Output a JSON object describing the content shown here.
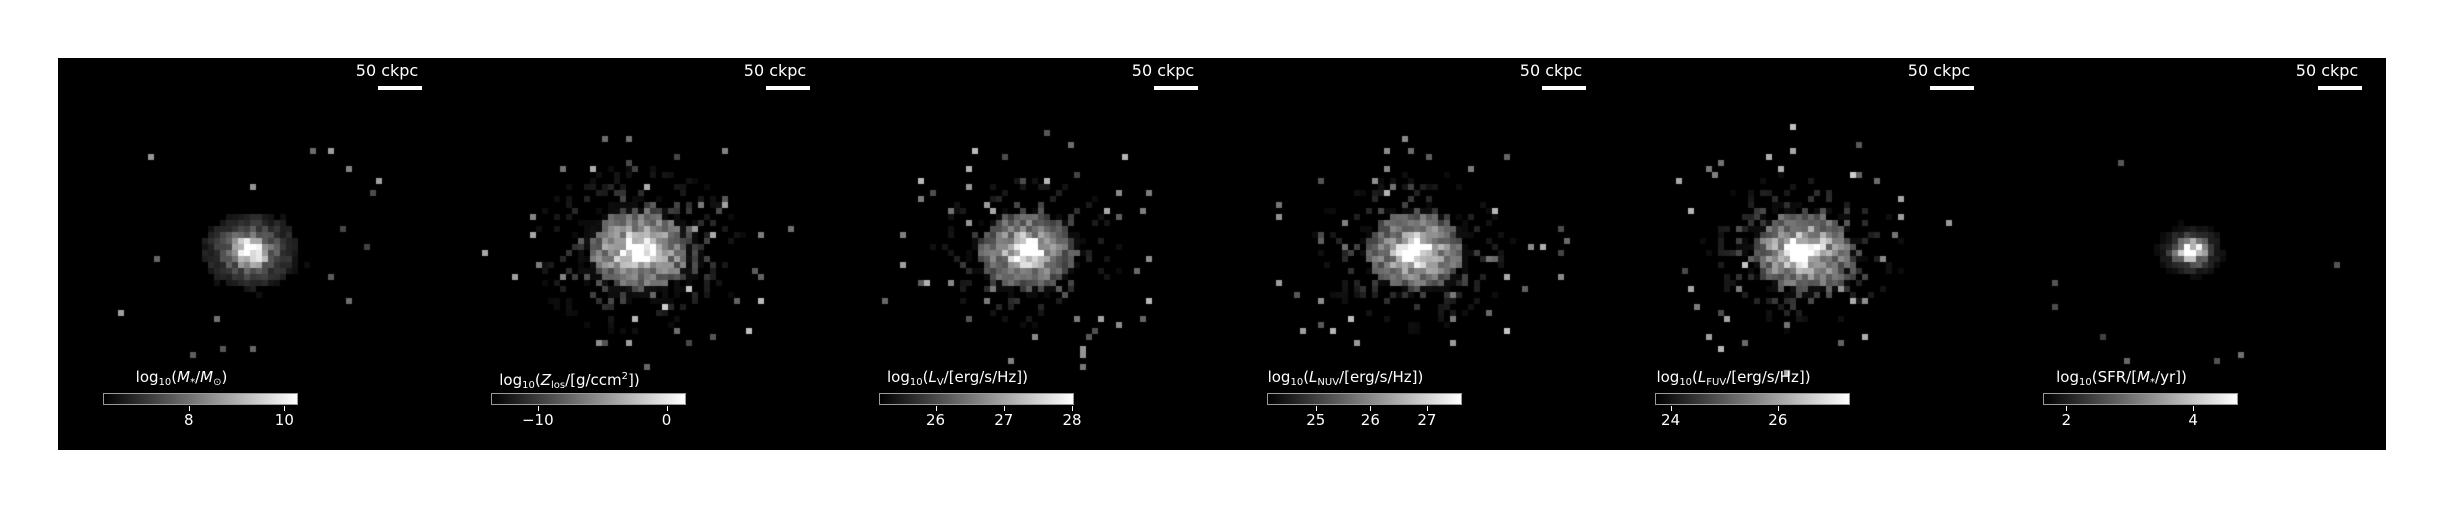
{
  "figure": {
    "background": "#000000",
    "panels": [
      {
        "id": "stellar-mass",
        "scale_label": "50 ckpc",
        "colorbar": {
          "title_prefix": "log",
          "title_sub": "10",
          "title_open": "(",
          "title_main": "M",
          "title_main_sub": "*",
          "title_mid": "/",
          "title_denom": "M",
          "title_denom_sub": "⊙",
          "title_close": ")",
          "ticks": [
            {
              "label": "8",
              "frac": 0.44
            },
            {
              "label": "10",
              "frac": 0.93
            }
          ]
        },
        "image": {
          "level": 0.55,
          "spread": 0.45,
          "sparsity": 0.25
        }
      },
      {
        "id": "metallicity",
        "scale_label": "50 ckpc",
        "colorbar": {
          "title_prefix": "log",
          "title_sub": "10",
          "title_open": "(",
          "title_main": "Z",
          "title_main_sub": "los",
          "title_mid": "/[g/ccm",
          "title_sup": "2",
          "title_close": "])",
          "ticks": [
            {
              "label": "−10",
              "frac": 0.24
            },
            {
              "label": "0",
              "frac": 0.9
            }
          ]
        },
        "image": {
          "level": 0.8,
          "spread": 0.75,
          "sparsity": 0.55
        }
      },
      {
        "id": "luminosity-v",
        "scale_label": "50 ckpc",
        "colorbar": {
          "title_prefix": "log",
          "title_sub": "10",
          "title_open": "(",
          "title_main": "L",
          "title_main_sub": "V",
          "title_mid": "/[erg/s/Hz]",
          "title_close": ")",
          "ticks": [
            {
              "label": "26",
              "frac": 0.29
            },
            {
              "label": "27",
              "frac": 0.64
            },
            {
              "label": "28",
              "frac": 0.99
            }
          ]
        },
        "image": {
          "level": 0.7,
          "spread": 0.7,
          "sparsity": 0.5
        }
      },
      {
        "id": "luminosity-nuv",
        "scale_label": "50 ckpc",
        "colorbar": {
          "title_prefix": "log",
          "title_sub": "10",
          "title_open": "(",
          "title_main": "L",
          "title_main_sub": "NUV",
          "title_mid": "/[erg/s/Hz]",
          "title_close": ")",
          "ticks": [
            {
              "label": "25",
              "frac": 0.25
            },
            {
              "label": "26",
              "frac": 0.53
            },
            {
              "label": "27",
              "frac": 0.82
            }
          ]
        },
        "image": {
          "level": 0.75,
          "spread": 0.7,
          "sparsity": 0.55
        }
      },
      {
        "id": "luminosity-fuv",
        "scale_label": "50 ckpc",
        "colorbar": {
          "title_prefix": "log",
          "title_sub": "10",
          "title_open": "(",
          "title_main": "L",
          "title_main_sub": "FUV",
          "title_mid": "/[erg/s/Hz]",
          "title_close": ")",
          "ticks": [
            {
              "label": "24",
              "frac": 0.08
            },
            {
              "label": "26",
              "frac": 0.63
            }
          ]
        },
        "image": {
          "level": 0.8,
          "spread": 0.7,
          "sparsity": 0.55
        }
      },
      {
        "id": "star-formation-rate",
        "scale_label": "50 ckpc",
        "colorbar": {
          "title_prefix": "log",
          "title_sub": "10",
          "title_open": "(SFR/[",
          "title_main": "M",
          "title_main_sub": "*",
          "title_mid": "/yr])",
          "title_close": "",
          "ticks": [
            {
              "label": "2",
              "frac": 0.12
            },
            {
              "label": "4",
              "frac": 0.77
            }
          ]
        },
        "image": {
          "level": 0.3,
          "spread": 0.3,
          "sparsity": 0.1
        }
      }
    ]
  }
}
